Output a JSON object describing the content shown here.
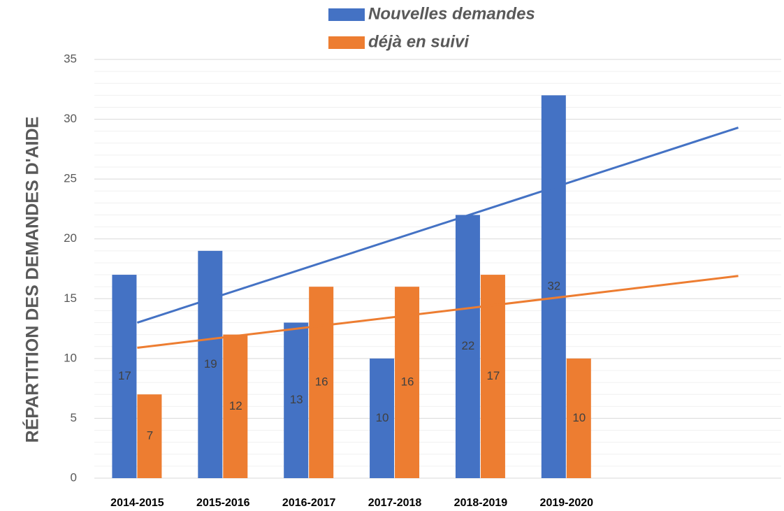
{
  "chart_data": {
    "type": "bar",
    "y_axis_label": "RÉPARTITION DES DEMANDES D'AIDE",
    "categories": [
      "2014-2015",
      "2015-2016",
      "2016-2017",
      "2017-2018",
      "2018-2019",
      "2019-2020",
      null,
      null
    ],
    "series": [
      {
        "name": "Nouvelles demandes",
        "color": "#4472c4",
        "values": [
          17,
          19,
          13,
          10,
          22,
          32,
          null,
          null
        ]
      },
      {
        "name": "déjà en suivi",
        "color": "#ed7d31",
        "values": [
          7,
          12,
          16,
          16,
          17,
          10,
          null,
          null
        ]
      }
    ],
    "trendlines": [
      {
        "color": "#4472c4",
        "x": [
          1,
          8
        ],
        "values": [
          13.0,
          29.3
        ]
      },
      {
        "color": "#ed7d31",
        "x": [
          1,
          8
        ],
        "values": [
          10.9,
          16.9
        ]
      }
    ],
    "ylim": [
      0,
      35
    ],
    "yticks": [
      0,
      5,
      10,
      15,
      20,
      25,
      30,
      35
    ],
    "grid": true,
    "minor_divisions": 5,
    "legend": "top"
  }
}
